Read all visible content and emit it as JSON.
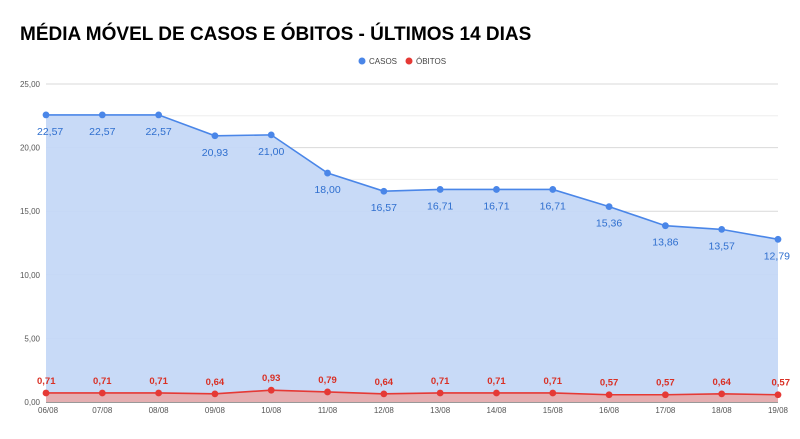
{
  "chart_data": {
    "type": "area",
    "title": "MÉDIA MÓVEL DE CASOS E ÓBITOS - ÚLTIMOS 14 DIAS",
    "xlabel": "",
    "ylabel": "",
    "ylim": [
      0,
      25
    ],
    "y_ticks": [
      "0,00",
      "5,00",
      "10,00",
      "15,00",
      "20,00",
      "25,00"
    ],
    "categories": [
      "06/08",
      "07/08",
      "08/08",
      "09/08",
      "10/08",
      "11/08",
      "12/08",
      "13/08",
      "14/08",
      "15/08",
      "16/08",
      "17/08",
      "18/08",
      "19/08"
    ],
    "legend_position": "top-center",
    "grid": true,
    "series": [
      {
        "name": "CASOS",
        "color": "#4a86e8",
        "fill": "#c5d8f7",
        "values": [
          22.57,
          22.57,
          22.57,
          20.93,
          21.0,
          18.0,
          16.57,
          16.71,
          16.71,
          16.71,
          15.36,
          13.86,
          13.57,
          12.79
        ],
        "labels": [
          "22,57",
          "22,57",
          "22,57",
          "20,93",
          "21,00",
          "18,00",
          "16,57",
          "16,71",
          "16,71",
          "16,71",
          "15,36",
          "13,86",
          "13,57",
          "12,79"
        ]
      },
      {
        "name": "ÓBITOS",
        "color": "#e53935",
        "fill": "#e8a9a9",
        "values": [
          0.71,
          0.71,
          0.71,
          0.64,
          0.93,
          0.79,
          0.64,
          0.71,
          0.71,
          0.71,
          0.57,
          0.57,
          0.64,
          0.57
        ],
        "labels": [
          "0,71",
          "0,71",
          "0,71",
          "0,64",
          "0,93",
          "0,79",
          "0,64",
          "0,71",
          "0,71",
          "0,71",
          "0,57",
          "0,57",
          "0,64",
          "0,57"
        ]
      }
    ]
  }
}
